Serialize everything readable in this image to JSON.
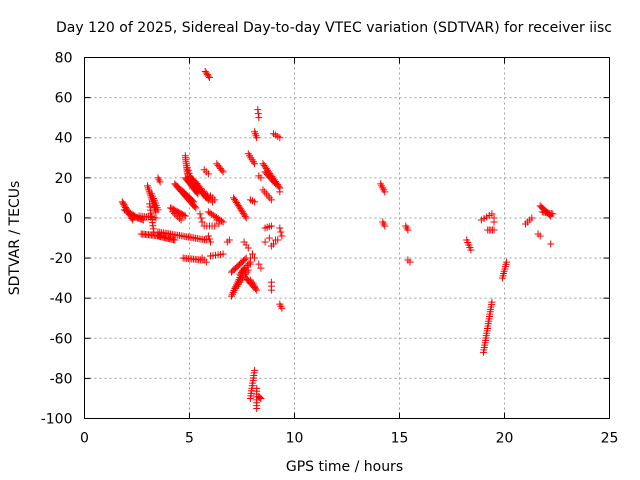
{
  "chart_data": {
    "type": "scatter",
    "title": "Day 120 of 2025, Sidereal Day-to-day VTEC variation (SDTVAR) for receiver iisc",
    "xlabel": "GPS time / hours",
    "ylabel": "SDTVAR / TECUs",
    "xlim": [
      0,
      25
    ],
    "ylim": [
      -100,
      80
    ],
    "xticks": [
      0,
      5,
      10,
      15,
      20,
      25
    ],
    "yticks": [
      -100,
      -80,
      -60,
      -40,
      -20,
      0,
      20,
      40,
      60,
      80
    ],
    "grid": true,
    "marker": "+",
    "color": "#ff0000",
    "tracks": [
      {
        "x0": 1.8,
        "y0": 8,
        "x1": 2.3,
        "y1": -1,
        "n": 14
      },
      {
        "x0": 1.9,
        "y0": 4,
        "x1": 2.4,
        "y1": 1,
        "n": 8
      },
      {
        "x0": 2.3,
        "y0": 1,
        "x1": 2.8,
        "y1": -1,
        "n": 10
      },
      {
        "x0": 2.6,
        "y0": 1,
        "x1": 3.4,
        "y1": 0,
        "n": 10
      },
      {
        "x0": 2.7,
        "y0": -8,
        "x1": 3.6,
        "y1": -9,
        "n": 14
      },
      {
        "x0": 3.0,
        "y0": 16,
        "x1": 3.4,
        "y1": 3,
        "n": 14
      },
      {
        "x0": 3.2,
        "y0": 12,
        "x1": 3.5,
        "y1": 4,
        "n": 8
      },
      {
        "x0": 3.1,
        "y0": 7,
        "x1": 3.3,
        "y1": -7,
        "n": 10
      },
      {
        "x0": 3.5,
        "y0": 20,
        "x1": 3.6,
        "y1": 18,
        "n": 3
      },
      {
        "x0": 3.5,
        "y0": -9,
        "x1": 4.3,
        "y1": -11,
        "n": 14
      },
      {
        "x0": 3.5,
        "y0": -7,
        "x1": 5.8,
        "y1": -11,
        "n": 28
      },
      {
        "x0": 4.1,
        "y0": 5,
        "x1": 4.8,
        "y1": 1,
        "n": 12
      },
      {
        "x0": 4.2,
        "y0": 3,
        "x1": 4.6,
        "y1": -1,
        "n": 6
      },
      {
        "x0": 4.3,
        "y0": 17,
        "x1": 5.3,
        "y1": 5,
        "n": 20
      },
      {
        "x0": 4.6,
        "y0": 14,
        "x1": 5.2,
        "y1": 8,
        "n": 12
      },
      {
        "x0": 4.8,
        "y0": 20,
        "x1": 5.4,
        "y1": 12,
        "n": 14
      },
      {
        "x0": 4.8,
        "y0": 31,
        "x1": 4.9,
        "y1": 22,
        "n": 10
      },
      {
        "x0": 4.9,
        "y0": 25,
        "x1": 5.1,
        "y1": 18,
        "n": 6
      },
      {
        "x0": 5.0,
        "y0": 21,
        "x1": 5.8,
        "y1": 10,
        "n": 18
      },
      {
        "x0": 5.3,
        "y0": 18,
        "x1": 5.9,
        "y1": 9,
        "n": 12
      },
      {
        "x0": 4.7,
        "y0": -20,
        "x1": 5.6,
        "y1": -21,
        "n": 12
      },
      {
        "x0": 5.6,
        "y0": -20,
        "x1": 5.8,
        "y1": -22,
        "n": 3
      },
      {
        "x0": 5.5,
        "y0": 2,
        "x1": 5.6,
        "y1": -2,
        "n": 3
      },
      {
        "x0": 5.7,
        "y0": 13,
        "x1": 6.1,
        "y1": 8,
        "n": 6
      },
      {
        "x0": 5.7,
        "y0": 24,
        "x1": 5.9,
        "y1": 22,
        "n": 3
      },
      {
        "x0": 5.75,
        "y0": 73,
        "x1": 5.95,
        "y1": 70,
        "n": 5
      },
      {
        "x0": 5.7,
        "y0": -4,
        "x1": 6.2,
        "y1": -4,
        "n": 5
      },
      {
        "x0": 5.9,
        "y0": -9,
        "x1": 6.0,
        "y1": -12,
        "n": 3
      },
      {
        "x0": 5.9,
        "y0": 3,
        "x1": 6.6,
        "y1": -2,
        "n": 10
      },
      {
        "x0": 6.0,
        "y0": -19,
        "x1": 6.6,
        "y1": -18,
        "n": 6
      },
      {
        "x0": 6.0,
        "y0": 11,
        "x1": 6.2,
        "y1": 9,
        "n": 3
      },
      {
        "x0": 6.3,
        "y0": 27,
        "x1": 6.6,
        "y1": 23,
        "n": 6
      },
      {
        "x0": 6.3,
        "y0": -1,
        "x1": 6.4,
        "y1": -3,
        "n": 2
      },
      {
        "x0": 6.8,
        "y0": -12,
        "x1": 6.9,
        "y1": -11,
        "n": 2
      },
      {
        "x0": 7.1,
        "y0": 10,
        "x1": 7.7,
        "y1": 0,
        "n": 14
      },
      {
        "x0": 7.0,
        "y0": -39,
        "x1": 7.6,
        "y1": -25,
        "n": 16
      },
      {
        "x0": 7.0,
        "y0": -27,
        "x1": 7.7,
        "y1": -20,
        "n": 12
      },
      {
        "x0": 7.2,
        "y0": -35,
        "x1": 7.8,
        "y1": -26,
        "n": 10
      },
      {
        "x0": 7.4,
        "y0": -28,
        "x1": 7.9,
        "y1": -22,
        "n": 8
      },
      {
        "x0": 7.6,
        "y0": -12,
        "x1": 7.8,
        "y1": -15,
        "n": 3
      },
      {
        "x0": 7.7,
        "y0": -30,
        "x1": 8.2,
        "y1": -36,
        "n": 10
      },
      {
        "x0": 7.9,
        "y0": -31,
        "x1": 8.1,
        "y1": -34,
        "n": 4
      },
      {
        "x0": 7.8,
        "y0": 32,
        "x1": 8.1,
        "y1": 27,
        "n": 6
      },
      {
        "x0": 7.9,
        "y0": 9,
        "x1": 8.1,
        "y1": 8,
        "n": 3
      },
      {
        "x0": 7.9,
        "y0": -20,
        "x1": 8.1,
        "y1": -20,
        "n": 2
      },
      {
        "x0": 8.0,
        "y0": -18,
        "x1": 7.9,
        "y1": -23,
        "n": 2
      },
      {
        "x0": 8.1,
        "y0": 43,
        "x1": 8.2,
        "y1": 40,
        "n": 4
      },
      {
        "x0": 8.1,
        "y0": -76,
        "x1": 7.9,
        "y1": -90,
        "n": 12
      },
      {
        "x0": 8.2,
        "y0": -85,
        "x1": 8.2,
        "y1": -95,
        "n": 8
      },
      {
        "x0": 8.3,
        "y0": -89,
        "x1": 8.4,
        "y1": -90,
        "n": 3
      },
      {
        "x0": 8.25,
        "y0": 54,
        "x1": 8.3,
        "y1": 50,
        "n": 3
      },
      {
        "x0": 8.3,
        "y0": -23,
        "x1": 8.4,
        "y1": -25,
        "n": 2
      },
      {
        "x0": 8.4,
        "y0": 20,
        "x1": 8.3,
        "y1": 21,
        "n": 2
      },
      {
        "x0": 8.5,
        "y0": 14,
        "x1": 8.9,
        "y1": 9,
        "n": 6
      },
      {
        "x0": 8.5,
        "y0": 27,
        "x1": 9.3,
        "y1": 15,
        "n": 16
      },
      {
        "x0": 8.6,
        "y0": 23,
        "x1": 9.1,
        "y1": 17,
        "n": 10
      },
      {
        "x0": 8.6,
        "y0": -5,
        "x1": 8.9,
        "y1": -4,
        "n": 4
      },
      {
        "x0": 8.6,
        "y0": -12,
        "x1": 8.8,
        "y1": -10,
        "n": 2
      },
      {
        "x0": 8.9,
        "y0": -36,
        "x1": 8.9,
        "y1": -32,
        "n": 3
      },
      {
        "x0": 8.9,
        "y0": -14,
        "x1": 9.0,
        "y1": -13,
        "n": 2
      },
      {
        "x0": 9.0,
        "y0": 42,
        "x1": 9.3,
        "y1": 40,
        "n": 4
      },
      {
        "x0": 9.1,
        "y0": -11,
        "x1": 9.2,
        "y1": -11,
        "n": 2
      },
      {
        "x0": 9.3,
        "y0": 15,
        "x1": 9.3,
        "y1": 13,
        "n": 2
      },
      {
        "x0": 9.3,
        "y0": -43,
        "x1": 9.4,
        "y1": -45,
        "n": 3
      },
      {
        "x0": 9.3,
        "y0": -5,
        "x1": 9.4,
        "y1": -9,
        "n": 3
      },
      {
        "x0": 14.1,
        "y0": 17,
        "x1": 14.3,
        "y1": 13,
        "n": 5
      },
      {
        "x0": 14.2,
        "y0": -2,
        "x1": 14.3,
        "y1": -4,
        "n": 3
      },
      {
        "x0": 15.3,
        "y0": -4,
        "x1": 15.4,
        "y1": -6,
        "n": 3
      },
      {
        "x0": 15.4,
        "y0": -21,
        "x1": 15.5,
        "y1": -22,
        "n": 2
      },
      {
        "x0": 18.2,
        "y0": -11,
        "x1": 18.4,
        "y1": -16,
        "n": 5
      },
      {
        "x0": 19.0,
        "y0": -67,
        "x1": 19.4,
        "y1": -42,
        "n": 22
      },
      {
        "x0": 18.9,
        "y0": -1,
        "x1": 19.4,
        "y1": 2,
        "n": 5
      },
      {
        "x0": 19.2,
        "y0": -6,
        "x1": 19.5,
        "y1": -6,
        "n": 5
      },
      {
        "x0": 19.5,
        "y0": 0,
        "x1": 19.5,
        "y1": -2,
        "n": 2
      },
      {
        "x0": 19.9,
        "y0": -30,
        "x1": 20.1,
        "y1": -22,
        "n": 8
      },
      {
        "x0": 21.0,
        "y0": -3,
        "x1": 21.3,
        "y1": 0,
        "n": 4
      },
      {
        "x0": 21.6,
        "y0": -8,
        "x1": 21.7,
        "y1": -9,
        "n": 2
      },
      {
        "x0": 21.7,
        "y0": 6,
        "x1": 22.2,
        "y1": 1,
        "n": 10
      },
      {
        "x0": 21.8,
        "y0": 3,
        "x1": 22.3,
        "y1": 2,
        "n": 8
      },
      {
        "x0": 22.2,
        "y0": -13,
        "x1": 22.2,
        "y1": -13,
        "n": 1
      }
    ]
  }
}
